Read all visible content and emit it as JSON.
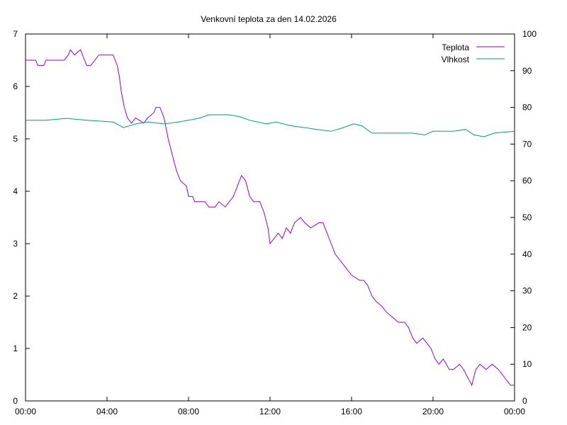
{
  "chart_data": {
    "type": "line",
    "title": "Venkovní teplota za den 14.02.2026",
    "legend": {
      "placement": "top-right"
    },
    "grid": false,
    "x_axis": {
      "range_hours": [
        0,
        24
      ],
      "ticks": [
        {
          "h": 0,
          "label": "00:00"
        },
        {
          "h": 4,
          "label": "04:00"
        },
        {
          "h": 8,
          "label": "08:00"
        },
        {
          "h": 12,
          "label": "12:00"
        },
        {
          "h": 16,
          "label": "16:00"
        },
        {
          "h": 20,
          "label": "20:00"
        },
        {
          "h": 24,
          "label": "00:00"
        }
      ]
    },
    "y_left": {
      "range": [
        0,
        7
      ],
      "ticks": [
        "0",
        "1",
        "2",
        "3",
        "4",
        "5",
        "6",
        "7"
      ]
    },
    "y_right": {
      "range": [
        0,
        100
      ],
      "ticks": [
        "0",
        "10",
        "20",
        "30",
        "40",
        "50",
        "60",
        "70",
        "80",
        "90",
        "100"
      ]
    },
    "series": [
      {
        "name": "Teplota",
        "axis": "left",
        "color": "#9400d3",
        "points": [
          [
            0.0,
            6.5
          ],
          [
            0.5,
            6.5
          ],
          [
            0.6,
            6.4
          ],
          [
            0.9,
            6.4
          ],
          [
            1.0,
            6.5
          ],
          [
            1.9,
            6.5
          ],
          [
            2.1,
            6.6
          ],
          [
            2.2,
            6.7
          ],
          [
            2.4,
            6.6
          ],
          [
            2.7,
            6.7
          ],
          [
            2.9,
            6.5
          ],
          [
            3.0,
            6.4
          ],
          [
            3.2,
            6.4
          ],
          [
            3.4,
            6.5
          ],
          [
            3.6,
            6.6
          ],
          [
            4.1,
            6.6
          ],
          [
            4.3,
            6.6
          ],
          [
            4.4,
            6.5
          ],
          [
            4.5,
            6.4
          ],
          [
            4.6,
            6.2
          ],
          [
            4.7,
            5.9
          ],
          [
            4.85,
            5.6
          ],
          [
            5.0,
            5.4
          ],
          [
            5.2,
            5.3
          ],
          [
            5.4,
            5.4
          ],
          [
            5.8,
            5.3
          ],
          [
            6.0,
            5.4
          ],
          [
            6.3,
            5.5
          ],
          [
            6.4,
            5.6
          ],
          [
            6.6,
            5.6
          ],
          [
            6.8,
            5.4
          ],
          [
            7.0,
            5.0
          ],
          [
            7.2,
            4.7
          ],
          [
            7.4,
            4.4
          ],
          [
            7.6,
            4.2
          ],
          [
            7.9,
            4.1
          ],
          [
            8.0,
            3.9
          ],
          [
            8.2,
            3.9
          ],
          [
            8.3,
            3.8
          ],
          [
            8.8,
            3.8
          ],
          [
            9.0,
            3.7
          ],
          [
            9.3,
            3.7
          ],
          [
            9.5,
            3.8
          ],
          [
            9.8,
            3.7
          ],
          [
            10.0,
            3.8
          ],
          [
            10.2,
            3.9
          ],
          [
            10.4,
            4.1
          ],
          [
            10.6,
            4.3
          ],
          [
            10.8,
            4.2
          ],
          [
            11.0,
            3.9
          ],
          [
            11.2,
            3.8
          ],
          [
            11.5,
            3.8
          ],
          [
            11.7,
            3.6
          ],
          [
            11.9,
            3.3
          ],
          [
            12.0,
            3.0
          ],
          [
            12.2,
            3.1
          ],
          [
            12.4,
            3.2
          ],
          [
            12.6,
            3.1
          ],
          [
            12.8,
            3.3
          ],
          [
            13.0,
            3.2
          ],
          [
            13.2,
            3.4
          ],
          [
            13.5,
            3.5
          ],
          [
            13.7,
            3.4
          ],
          [
            14.0,
            3.3
          ],
          [
            14.4,
            3.4
          ],
          [
            14.6,
            3.4
          ],
          [
            14.8,
            3.2
          ],
          [
            15.0,
            3.0
          ],
          [
            15.2,
            2.8
          ],
          [
            15.4,
            2.7
          ],
          [
            15.6,
            2.6
          ],
          [
            15.8,
            2.5
          ],
          [
            16.0,
            2.4
          ],
          [
            16.4,
            2.3
          ],
          [
            16.6,
            2.3
          ],
          [
            16.8,
            2.2
          ],
          [
            17.0,
            2.0
          ],
          [
            17.2,
            1.9
          ],
          [
            17.5,
            1.8
          ],
          [
            17.7,
            1.7
          ],
          [
            18.0,
            1.6
          ],
          [
            18.3,
            1.5
          ],
          [
            18.6,
            1.5
          ],
          [
            18.8,
            1.4
          ],
          [
            19.0,
            1.2
          ],
          [
            19.2,
            1.1
          ],
          [
            19.5,
            1.2
          ],
          [
            19.7,
            1.1
          ],
          [
            19.9,
            1.0
          ],
          [
            20.1,
            0.8
          ],
          [
            20.3,
            0.7
          ],
          [
            20.5,
            0.8
          ],
          [
            20.8,
            0.6
          ],
          [
            21.0,
            0.6
          ],
          [
            21.3,
            0.7
          ],
          [
            21.5,
            0.6
          ],
          [
            21.9,
            0.3
          ],
          [
            22.1,
            0.6
          ],
          [
            22.3,
            0.7
          ],
          [
            22.6,
            0.6
          ],
          [
            22.9,
            0.7
          ],
          [
            23.2,
            0.6
          ],
          [
            23.4,
            0.5
          ],
          [
            23.6,
            0.4
          ],
          [
            23.8,
            0.3
          ],
          [
            24.0,
            0.3
          ]
        ]
      },
      {
        "name": "Vlhkost",
        "axis": "right",
        "color": "#009e73",
        "points": [
          [
            0.0,
            76.5
          ],
          [
            1.0,
            76.5
          ],
          [
            2.0,
            77.0
          ],
          [
            3.0,
            76.5
          ],
          [
            3.8,
            76.2
          ],
          [
            4.3,
            76.0
          ],
          [
            4.8,
            74.5
          ],
          [
            5.4,
            75.5
          ],
          [
            6.0,
            76.0
          ],
          [
            6.8,
            75.5
          ],
          [
            7.5,
            76.0
          ],
          [
            8.5,
            77.0
          ],
          [
            9.0,
            78.0
          ],
          [
            10.0,
            78.0
          ],
          [
            10.5,
            77.5
          ],
          [
            11.0,
            76.5
          ],
          [
            11.8,
            75.5
          ],
          [
            12.3,
            76.0
          ],
          [
            13.0,
            75.0
          ],
          [
            13.7,
            74.5
          ],
          [
            14.3,
            74.0
          ],
          [
            15.0,
            73.5
          ],
          [
            15.6,
            74.5
          ],
          [
            16.1,
            75.5
          ],
          [
            16.5,
            75.0
          ],
          [
            17.0,
            73.0
          ],
          [
            18.0,
            73.0
          ],
          [
            19.0,
            73.0
          ],
          [
            19.6,
            72.5
          ],
          [
            20.0,
            73.5
          ],
          [
            21.0,
            73.5
          ],
          [
            21.6,
            74.0
          ],
          [
            22.0,
            72.5
          ],
          [
            22.5,
            72.0
          ],
          [
            23.0,
            73.0
          ],
          [
            24.0,
            73.5
          ]
        ]
      }
    ]
  }
}
